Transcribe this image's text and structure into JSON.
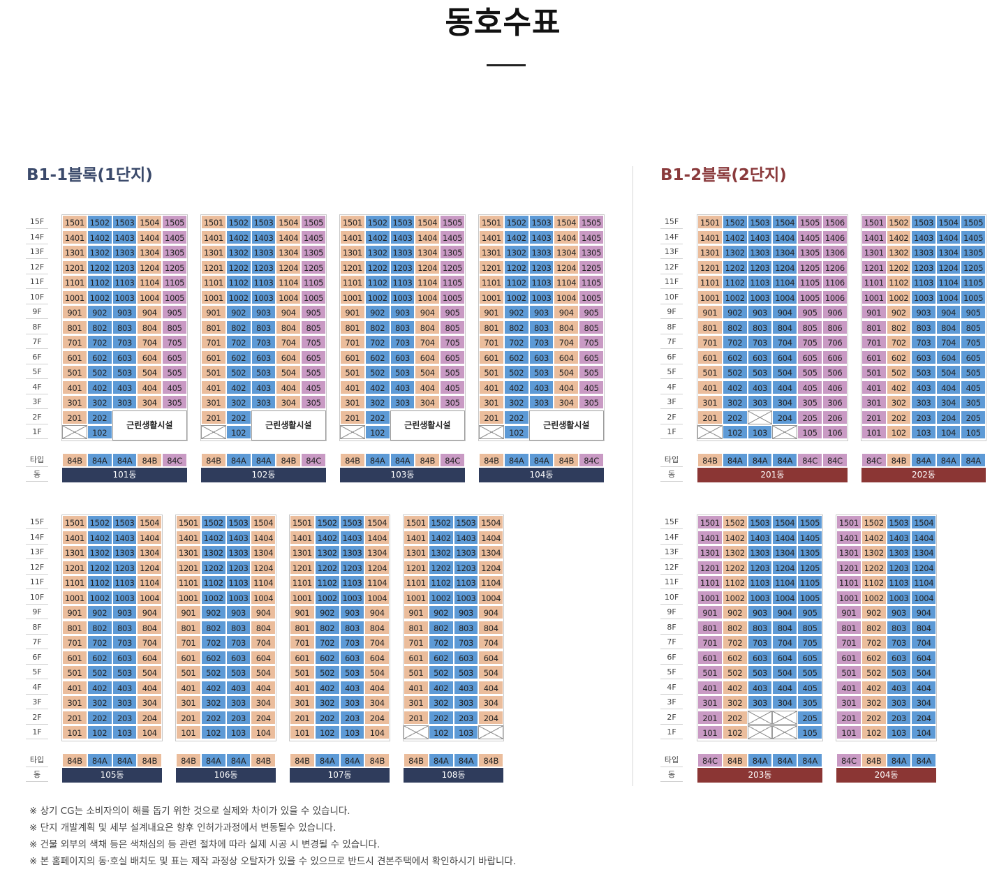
{
  "title": "동호수표",
  "blocks": [
    {
      "name": "B1-1블록(1단지)",
      "color": "#3b4a6b"
    },
    {
      "name": "B1-2블록(2단지)",
      "color": "#8a3a3c"
    }
  ],
  "floor_labels": [
    "15F",
    "14F",
    "13F",
    "12F",
    "11F",
    "10F",
    "9F",
    "8F",
    "7F",
    "6F",
    "5F",
    "4F",
    "3F",
    "2F",
    "1F"
  ],
  "type_label": "타입",
  "dong_label": "동",
  "facility_label": "근린생활시설",
  "type_colors": {
    "84A": "#5d9ad6",
    "84B": "#ebbd9c",
    "84C": "#c99ac4"
  },
  "dong_colors": {
    "block1": "#2f3c5c",
    "block2": "#8b3634"
  },
  "buildings": [
    {
      "dong": "101동",
      "block": 1,
      "types": [
        "84B",
        "84A",
        "84A",
        "84B",
        "84C"
      ],
      "facility": true
    },
    {
      "dong": "102동",
      "block": 1,
      "types": [
        "84B",
        "84A",
        "84A",
        "84B",
        "84C"
      ],
      "facility": true
    },
    {
      "dong": "103동",
      "block": 1,
      "types": [
        "84B",
        "84A",
        "84A",
        "84B",
        "84C"
      ],
      "facility": true
    },
    {
      "dong": "104동",
      "block": 1,
      "types": [
        "84B",
        "84A",
        "84A",
        "84B",
        "84C"
      ],
      "facility": true
    },
    {
      "dong": "201동",
      "block": 2,
      "types": [
        "84B",
        "84A",
        "84A",
        "84A",
        "84C",
        "84C"
      ],
      "missing": [
        "203"
      ],
      "missing_1f": [
        "101",
        "104"
      ]
    },
    {
      "dong": "202동",
      "block": 2,
      "types": [
        "84C",
        "84B",
        "84A",
        "84A",
        "84A"
      ]
    },
    {
      "dong": "105동",
      "block": 1,
      "types": [
        "84B",
        "84A",
        "84A",
        "84B"
      ]
    },
    {
      "dong": "106동",
      "block": 1,
      "types": [
        "84B",
        "84A",
        "84A",
        "84B"
      ]
    },
    {
      "dong": "107동",
      "block": 1,
      "types": [
        "84B",
        "84A",
        "84A",
        "84B"
      ]
    },
    {
      "dong": "108동",
      "block": 1,
      "types": [
        "84B",
        "84A",
        "84A",
        "84B"
      ],
      "missing_1f": [
        "101",
        "104"
      ]
    },
    {
      "dong": "203동",
      "block": 2,
      "types": [
        "84C",
        "84B",
        "84A",
        "84A",
        "84A"
      ],
      "missing": [
        "203",
        "204"
      ],
      "missing_1f": [
        "103",
        "104"
      ]
    },
    {
      "dong": "204동",
      "block": 2,
      "types": [
        "84C",
        "84B",
        "84A",
        "84A"
      ]
    }
  ],
  "notes": [
    "※ 상기 CG는 소비자의이 해를 돕기 위한 것으로 실제와 차이가 있을 수 있습니다.",
    "※ 단지 개발계획 및 세부 설계내요은 향후 인허가과정에서 변동될수 있습니다.",
    "※ 건물 외부의 색채 등은 색채심의 등 관련 절차에 따라 실제 시공 시 변경될 수 있습니다.",
    "※ 본 홈페이지의 동·호실 배치도 및 표는 제작 과정상 오탈자가 있을 수 있으므로 반드시 견본주택에서 확인하시기 바랍니다."
  ]
}
